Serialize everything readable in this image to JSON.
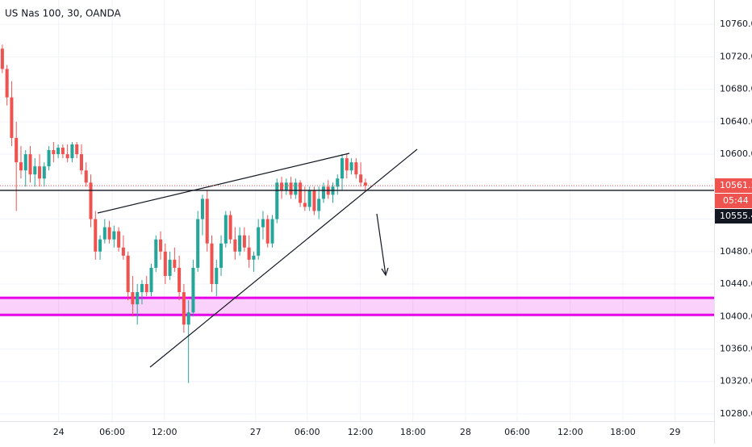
{
  "chart_data": {
    "type": "candlestick",
    "title": "US Nas 100, 30, OANDA",
    "up_color": "#26a69a",
    "down_color": "#ef5350",
    "grid": true,
    "open": [
      10730,
      10705,
      10670,
      10620,
      10590,
      10580,
      10600,
      10575,
      10585,
      10570,
      10585,
      10605,
      10600,
      10608,
      10600,
      10595,
      10612,
      10600,
      10580,
      10565,
      10520,
      10480,
      10495,
      10510,
      10495,
      10505,
      10485,
      10475,
      10430,
      10415,
      10430,
      10440,
      10430,
      10460,
      10495,
      10480,
      10450,
      10470,
      10460,
      10430,
      10390,
      10405,
      10460,
      10520,
      10545,
      10490,
      10440,
      10460,
      10490,
      10525,
      10495,
      10480,
      10500,
      10485,
      10470,
      10475,
      10510,
      10520,
      10490,
      10520,
      10565,
      10555,
      10565,
      10550,
      10565,
      10540,
      10535,
      10555,
      10530,
      10545,
      10560,
      10550,
      10560,
      10570,
      10595,
      10580,
      10590,
      10575,
      10565
    ],
    "high": [
      10735,
      10710,
      10690,
      10640,
      10610,
      10605,
      10610,
      10595,
      10600,
      10590,
      10610,
      10615,
      10612,
      10612,
      10612,
      10615,
      10615,
      10612,
      10590,
      10575,
      10530,
      10500,
      10520,
      10518,
      10512,
      10510,
      10500,
      10480,
      10450,
      10440,
      10445,
      10450,
      10465,
      10500,
      10505,
      10490,
      10480,
      10485,
      10475,
      10440,
      10420,
      10470,
      10530,
      10550,
      10555,
      10500,
      10470,
      10500,
      10530,
      10530,
      10510,
      10510,
      10510,
      10500,
      10480,
      10520,
      10530,
      10525,
      10525,
      10570,
      10572,
      10570,
      10572,
      10570,
      10568,
      10560,
      10560,
      10560,
      10560,
      10565,
      10568,
      10565,
      10575,
      10600,
      10600,
      10595,
      10595,
      10590,
      10570
    ],
    "low": [
      10700,
      10660,
      10610,
      10530,
      10570,
      10560,
      10565,
      10560,
      10560,
      10560,
      10580,
      10590,
      10595,
      10595,
      10590,
      10590,
      10595,
      10575,
      10560,
      10510,
      10470,
      10470,
      10490,
      10490,
      10485,
      10480,
      10470,
      10420,
      10400,
      10390,
      10415,
      10425,
      10425,
      10455,
      10470,
      10440,
      10445,
      10455,
      10420,
      10380,
      10318,
      10400,
      10455,
      10500,
      10480,
      10430,
      10425,
      10450,
      10485,
      10490,
      10470,
      10475,
      10480,
      10460,
      10455,
      10470,
      10495,
      10485,
      10485,
      10515,
      10545,
      10550,
      10545,
      10545,
      10535,
      10530,
      10530,
      10525,
      10520,
      10540,
      10545,
      10540,
      10550,
      10555,
      10570,
      10575,
      10570,
      10560,
      10555
    ],
    "close": [
      10705,
      10670,
      10620,
      10590,
      10580,
      10600,
      10575,
      10585,
      10570,
      10585,
      10605,
      10600,
      10608,
      10600,
      10595,
      10612,
      10600,
      10580,
      10565,
      10520,
      10480,
      10495,
      10510,
      10495,
      10505,
      10485,
      10475,
      10430,
      10415,
      10430,
      10440,
      10430,
      10460,
      10495,
      10480,
      10450,
      10470,
      10460,
      10430,
      10390,
      10405,
      10460,
      10520,
      10545,
      10490,
      10440,
      10460,
      10490,
      10525,
      10495,
      10480,
      10500,
      10485,
      10470,
      10475,
      10510,
      10520,
      10490,
      10520,
      10565,
      10555,
      10565,
      10550,
      10565,
      10540,
      10535,
      10555,
      10530,
      10545,
      10560,
      10550,
      10560,
      10570,
      10595,
      10580,
      10590,
      10575,
      10565,
      10561.3
    ],
    "xlim": [
      -0.5,
      152.9
    ],
    "xticks": [
      {
        "value": 12.1,
        "label": "24"
      },
      {
        "value": 23.6,
        "label": "06:00"
      },
      {
        "value": 34.8,
        "label": "12:00"
      },
      {
        "value": 54.4,
        "label": "27"
      },
      {
        "value": 65.5,
        "label": "06:00"
      },
      {
        "value": 76.9,
        "label": "12:00"
      },
      {
        "value": 88.2,
        "label": "18:00"
      },
      {
        "value": 99.5,
        "label": "28"
      },
      {
        "value": 110.6,
        "label": "06:00"
      },
      {
        "value": 122.0,
        "label": "12:00"
      },
      {
        "value": 133.3,
        "label": "18:00"
      },
      {
        "value": 144.5,
        "label": "29"
      }
    ],
    "ylim": [
      10271,
      10790
    ],
    "yticks": [
      {
        "value": 10280,
        "label": "10280.0"
      },
      {
        "value": 10320,
        "label": "10320.0"
      },
      {
        "value": 10360,
        "label": "10360.0"
      },
      {
        "value": 10400,
        "label": "10400.0"
      },
      {
        "value": 10440,
        "label": "10440.0"
      },
      {
        "value": 10480,
        "label": "10480.0"
      },
      {
        "value": 10520,
        "label": "10520.0"
      },
      {
        "value": 10560,
        "label": "10560.0"
      },
      {
        "value": 10600,
        "label": "10600.0"
      },
      {
        "value": 10640,
        "label": "10640.0"
      },
      {
        "value": 10680,
        "label": "10680.0"
      },
      {
        "value": 10720,
        "label": "10720.0"
      },
      {
        "value": 10760,
        "label": "10760.0"
      }
    ],
    "last_price": 10561.3,
    "countdown": "05:44",
    "line_price": 10555.4,
    "zone": {
      "low": 10402,
      "high": 10423,
      "color": "#e600e6"
    }
  }
}
